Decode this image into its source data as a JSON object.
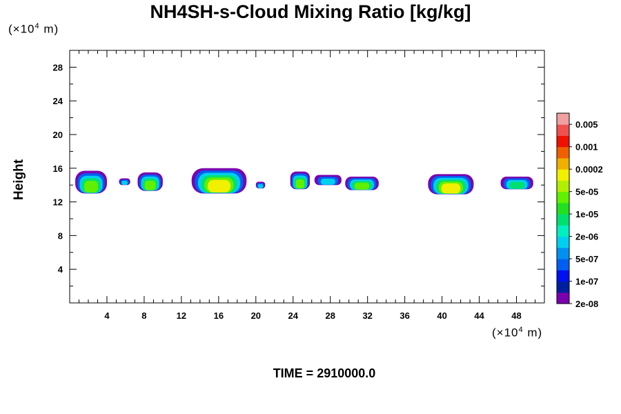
{
  "chart_data": {
    "type": "heatmap",
    "title": "NH4SH-s-Cloud Mixing Ratio [kg/kg]",
    "ylabel": "Height",
    "y_unit_label": "(×10",
    "y_unit_exp": "4",
    "y_unit_suffix": " m)",
    "x_unit_label": "(×10",
    "x_unit_exp": "4",
    "x_unit_suffix": " m)",
    "xlim": [
      0,
      51
    ],
    "ylim": [
      0,
      30
    ],
    "x_ticks": [
      4,
      8,
      12,
      16,
      20,
      24,
      28,
      32,
      36,
      40,
      44,
      48
    ],
    "y_ticks": [
      4,
      8,
      12,
      16,
      20,
      24,
      28
    ],
    "colorbar": {
      "labels": [
        "0.005",
        "0.001",
        "0.0002",
        "5e-05",
        "1e-05",
        "2e-06",
        "5e-07",
        "1e-07",
        "2e-08"
      ],
      "colors": [
        "#7a00b0",
        "#001fa0",
        "#0010f0",
        "#005ff0",
        "#0090f0",
        "#00d0f0",
        "#00f0c0",
        "#00e070",
        "#20e020",
        "#60f000",
        "#b0f000",
        "#f0f000",
        "#f0b000",
        "#f06000",
        "#f01000",
        "#f05050",
        "#f0a0a0"
      ]
    },
    "clouds": [
      {
        "x0": 0.6,
        "x1": 4.0,
        "top": 15.7,
        "bottom": 13.0,
        "peak": 5
      },
      {
        "x0": 5.3,
        "x1": 6.5,
        "top": 14.8,
        "bottom": 14.0,
        "peak": 3
      },
      {
        "x0": 7.3,
        "x1": 10.0,
        "top": 15.5,
        "bottom": 13.3,
        "peak": 5
      },
      {
        "x0": 13.1,
        "x1": 19.0,
        "top": 16.0,
        "bottom": 13.0,
        "peak": 6
      },
      {
        "x0": 20.0,
        "x1": 21.0,
        "top": 14.4,
        "bottom": 13.6,
        "peak": 3
      },
      {
        "x0": 23.7,
        "x1": 25.8,
        "top": 15.6,
        "bottom": 13.5,
        "peak": 5
      },
      {
        "x0": 26.3,
        "x1": 29.2,
        "top": 15.2,
        "bottom": 14.0,
        "peak": 3
      },
      {
        "x0": 29.6,
        "x1": 33.2,
        "top": 15.0,
        "bottom": 13.4,
        "peak": 5
      },
      {
        "x0": 38.5,
        "x1": 43.4,
        "top": 15.3,
        "bottom": 12.9,
        "peak": 6
      },
      {
        "x0": 46.3,
        "x1": 49.8,
        "top": 15.0,
        "bottom": 13.5,
        "peak": 4
      }
    ]
  },
  "footer": {
    "time_label": "TIME = 2910000.0"
  }
}
